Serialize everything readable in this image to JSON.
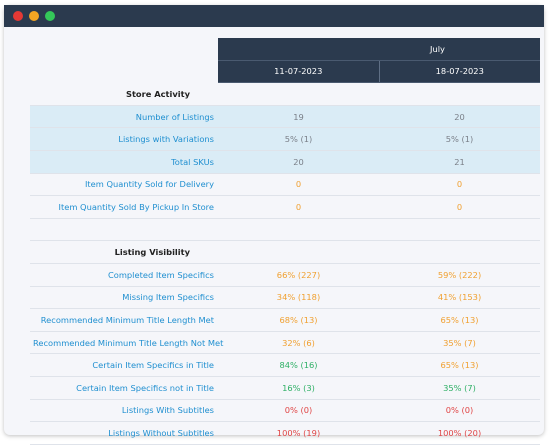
{
  "window": {
    "dots": [
      "#e53935",
      "#f5a623",
      "#34c759"
    ]
  },
  "table": {
    "month": "July",
    "dates": [
      "11-07-2023",
      "18-07-2023"
    ],
    "sections": [
      {
        "title": "Store Activity",
        "rows": [
          {
            "label": "Number of Listings",
            "values": [
              "19",
              "20"
            ],
            "colors": [
              "gray",
              "gray"
            ]
          },
          {
            "label": "Listings with Variations",
            "values": [
              "5% (1)",
              "5% (1)"
            ],
            "colors": [
              "gray",
              "gray"
            ]
          },
          {
            "label": "Total SKUs",
            "values": [
              "20",
              "21"
            ],
            "colors": [
              "gray",
              "gray"
            ]
          },
          {
            "label": "Item Quantity Sold for Delivery",
            "values": [
              "0",
              "0"
            ],
            "colors": [
              "orange",
              "orange"
            ]
          },
          {
            "label": "Item Quantity Sold By Pickup In Store",
            "values": [
              "0",
              "0"
            ],
            "colors": [
              "orange",
              "orange"
            ]
          }
        ]
      },
      {
        "title": "Listing Visibility",
        "rows": [
          {
            "label": "Completed Item Specifics",
            "values": [
              "66% (227)",
              "59% (222)"
            ],
            "colors": [
              "orange",
              "orange"
            ]
          },
          {
            "label": "Missing Item Specifics",
            "values": [
              "34% (118)",
              "41% (153)"
            ],
            "colors": [
              "orange",
              "orange"
            ]
          },
          {
            "label": "Recommended Minimum Title Length Met",
            "values": [
              "68% (13)",
              "65% (13)"
            ],
            "colors": [
              "orange",
              "orange"
            ]
          },
          {
            "label": "Recommended Minimum Title Length Not Met",
            "values": [
              "32% (6)",
              "35% (7)"
            ],
            "colors": [
              "orange",
              "orange"
            ]
          },
          {
            "label": "Certain Item Specifics in Title",
            "values": [
              "84% (16)",
              "65% (13)"
            ],
            "colors": [
              "green",
              "orange"
            ]
          },
          {
            "label": "Certain Item Specifics not in Title",
            "values": [
              "16% (3)",
              "35% (7)"
            ],
            "colors": [
              "green",
              "green"
            ]
          },
          {
            "label": "Listings With Subtitles",
            "values": [
              "0% (0)",
              "0% (0)"
            ],
            "colors": [
              "red",
              "red"
            ]
          },
          {
            "label": "Listings Without Subtitles",
            "values": [
              "100% (19)",
              "100% (20)"
            ],
            "colors": [
              "red",
              "red"
            ]
          }
        ]
      }
    ]
  }
}
